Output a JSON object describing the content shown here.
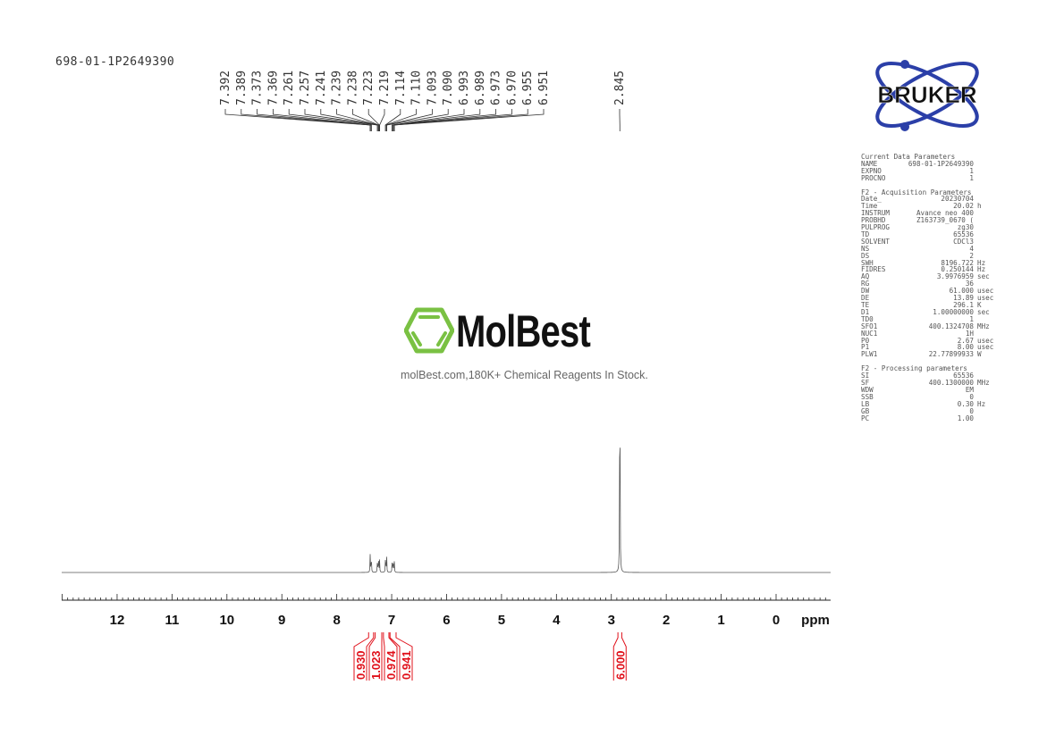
{
  "sample_name": "698-01-1P2649390",
  "watermark": {
    "brand": "MolBest",
    "tagline": "molBest.com,180K+ Chemical Reagents In Stock.",
    "color": "#7ac143"
  },
  "vendor_logo": {
    "text": "BRUKER",
    "color": "#2b3fa8"
  },
  "parameters": {
    "current": {
      "title": "Current Data Parameters",
      "rows": [
        [
          "NAME",
          "698-01-1P2649390",
          ""
        ],
        [
          "EXPNO",
          "1",
          ""
        ],
        [
          "PROCNO",
          "1",
          ""
        ]
      ]
    },
    "acquisition": {
      "title": "F2 - Acquisition Parameters",
      "rows": [
        [
          "Date_",
          "20230704",
          ""
        ],
        [
          "Time",
          "20.02",
          "h"
        ],
        [
          "INSTRUM",
          "Avance neo 400",
          ""
        ],
        [
          "PROBHD",
          "Z163739_0670 (",
          ""
        ],
        [
          "PULPROG",
          "zg30",
          ""
        ],
        [
          "TD",
          "65536",
          ""
        ],
        [
          "SOLVENT",
          "CDCl3",
          ""
        ],
        [
          "NS",
          "4",
          ""
        ],
        [
          "DS",
          "2",
          ""
        ],
        [
          "SWH",
          "8196.722",
          "Hz"
        ],
        [
          "FIDRES",
          "0.250144",
          "Hz"
        ],
        [
          "AQ",
          "3.9976959",
          "sec"
        ],
        [
          "RG",
          "36",
          ""
        ],
        [
          "DW",
          "61.000",
          "usec"
        ],
        [
          "DE",
          "13.89",
          "usec"
        ],
        [
          "TE",
          "296.1",
          "K"
        ],
        [
          "D1",
          "1.00000000",
          "sec"
        ],
        [
          "TD0",
          "1",
          ""
        ],
        [
          "SFO1",
          "400.1324708",
          "MHz"
        ],
        [
          "NUC1",
          "1H",
          ""
        ],
        [
          "P0",
          "2.67",
          "usec"
        ],
        [
          "P1",
          "8.00",
          "usec"
        ],
        [
          "PLW1",
          "22.77899933",
          "W"
        ]
      ]
    },
    "processing": {
      "title": "F2 - Processing parameters",
      "rows": [
        [
          "SI",
          "65536",
          ""
        ],
        [
          "SF",
          "400.1300000",
          "MHz"
        ],
        [
          "WDW",
          "EM",
          ""
        ],
        [
          "SSB",
          "0",
          ""
        ],
        [
          "LB",
          "0.30",
          "Hz"
        ],
        [
          "GB",
          "0",
          ""
        ],
        [
          "PC",
          "1.00",
          ""
        ]
      ]
    }
  },
  "chart_data": {
    "type": "line",
    "title": "",
    "xlabel": "ppm",
    "xlim": [
      13,
      -1
    ],
    "x_reversed": true,
    "x_ticks": [
      "12",
      "11",
      "10",
      "9",
      "8",
      "7",
      "6",
      "5",
      "4",
      "3",
      "2",
      "1",
      "0"
    ],
    "grid": false,
    "peak_labels": [
      "7.392",
      "7.389",
      "7.373",
      "7.369",
      "7.261",
      "7.257",
      "7.241",
      "7.239",
      "7.238",
      "7.223",
      "7.219",
      "7.114",
      "7.110",
      "7.093",
      "7.090",
      "6.993",
      "6.989",
      "6.973",
      "6.970",
      "6.955",
      "6.951",
      "2.845"
    ],
    "peaks": [
      {
        "ppm": 7.391,
        "intensity": 0.075
      },
      {
        "ppm": 7.371,
        "intensity": 0.075
      },
      {
        "ppm": 7.259,
        "intensity": 0.05
      },
      {
        "ppm": 7.24,
        "intensity": 0.065
      },
      {
        "ppm": 7.221,
        "intensity": 0.05
      },
      {
        "ppm": 7.112,
        "intensity": 0.075
      },
      {
        "ppm": 7.092,
        "intensity": 0.07
      },
      {
        "ppm": 6.991,
        "intensity": 0.045
      },
      {
        "ppm": 6.972,
        "intensity": 0.06
      },
      {
        "ppm": 6.953,
        "intensity": 0.045
      },
      {
        "ppm": 2.845,
        "intensity": 1.0
      }
    ],
    "integrals": [
      {
        "from": 7.42,
        "to": 7.33,
        "value": "0.930"
      },
      {
        "from": 7.3,
        "to": 7.18,
        "value": "1.023"
      },
      {
        "from": 7.15,
        "to": 7.05,
        "value": "0.974"
      },
      {
        "from": 7.03,
        "to": 6.92,
        "value": "0.941"
      },
      {
        "from": 2.88,
        "to": 2.81,
        "value": "6.000"
      }
    ],
    "line_color": "#555555",
    "integral_color": "#e0101a"
  }
}
